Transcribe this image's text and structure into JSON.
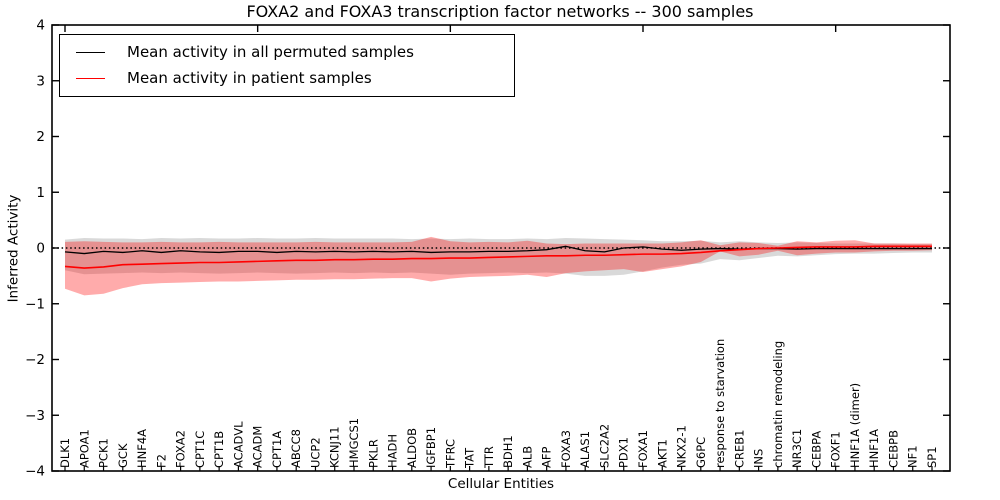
{
  "chart_data": {
    "type": "line",
    "title": "FOXA2 and FOXA3 transcription factor networks -- 300 samples",
    "xlabel": "Cellular Entities",
    "ylabel": "Inferred Activity",
    "ylim": [
      -4,
      4
    ],
    "yticks": [
      -4,
      -3,
      -2,
      -1,
      0,
      1,
      2,
      3,
      4
    ],
    "grid": false,
    "legend_position": "upper left",
    "zero_line": {
      "style": "dotted",
      "color": "#000000",
      "y": 0
    },
    "categories": [
      "DLK1",
      "APOA1",
      "PCK1",
      "GCK",
      "HNF4A",
      "F2",
      "FOXA2",
      "CPT1C",
      "CPT1B",
      "ACADVL",
      "ACADM",
      "CPT1A",
      "ABCC8",
      "UCP2",
      "KCNJ11",
      "HMGCS1",
      "PKLR",
      "HADH",
      "ALDOB",
      "IGFBP1",
      "TFRC",
      "TAT",
      "TTR",
      "BDH1",
      "ALB",
      "AFP",
      "FOXA3",
      "ALAS1",
      "SLC2A2",
      "PDX1",
      "FOXA1",
      "AKT1",
      "NKX2-1",
      "G6PC",
      "response to starvation",
      "CREB1",
      "INS",
      "chromatin remodeling",
      "NR3C1",
      "CEBPA",
      "FOXF1",
      "HNF1A (dimer)",
      "HNF1A",
      "CEBPB",
      "NF1",
      "SP1"
    ],
    "series": [
      {
        "name": "Mean activity in all permuted samples",
        "color": "#000000",
        "values": [
          -0.07,
          -0.1,
          -0.06,
          -0.08,
          -0.05,
          -0.08,
          -0.05,
          -0.07,
          -0.08,
          -0.06,
          -0.06,
          -0.08,
          -0.06,
          -0.07,
          -0.06,
          -0.07,
          -0.06,
          -0.07,
          -0.06,
          -0.08,
          -0.07,
          -0.07,
          -0.06,
          -0.06,
          -0.05,
          -0.03,
          0.03,
          -0.05,
          -0.07,
          0.0,
          0.02,
          -0.02,
          -0.04,
          -0.02,
          -0.01,
          -0.02,
          -0.01,
          -0.01,
          -0.02,
          -0.01,
          -0.01,
          -0.01,
          -0.01,
          -0.01,
          -0.01,
          -0.01
        ]
      },
      {
        "name": "Mean activity in patient samples",
        "color": "#ff0000",
        "values": [
          -0.33,
          -0.36,
          -0.34,
          -0.3,
          -0.29,
          -0.28,
          -0.27,
          -0.26,
          -0.26,
          -0.25,
          -0.24,
          -0.23,
          -0.22,
          -0.22,
          -0.21,
          -0.21,
          -0.2,
          -0.2,
          -0.19,
          -0.19,
          -0.18,
          -0.18,
          -0.17,
          -0.16,
          -0.15,
          -0.14,
          -0.14,
          -0.13,
          -0.13,
          -0.12,
          -0.11,
          -0.11,
          -0.1,
          -0.08,
          -0.05,
          -0.03,
          -0.01,
          0.0,
          0.01,
          0.02,
          0.02,
          0.02,
          0.03,
          0.03,
          0.03,
          0.03
        ]
      }
    ],
    "bands": [
      {
        "name": "permuted-std-band",
        "color": "#808080",
        "opacity": 0.3,
        "upper": [
          0.15,
          0.18,
          0.17,
          0.17,
          0.16,
          0.18,
          0.17,
          0.18,
          0.17,
          0.17,
          0.18,
          0.17,
          0.17,
          0.18,
          0.17,
          0.17,
          0.17,
          0.17,
          0.16,
          0.17,
          0.16,
          0.17,
          0.16,
          0.16,
          0.17,
          0.16,
          0.18,
          0.17,
          0.16,
          0.15,
          0.14,
          0.12,
          0.12,
          0.13,
          0.1,
          0.12,
          0.1,
          0.09,
          0.1,
          0.09,
          0.08,
          0.08,
          0.08,
          0.08,
          0.07,
          0.07
        ],
        "lower": [
          -0.4,
          -0.47,
          -0.46,
          -0.45,
          -0.44,
          -0.45,
          -0.44,
          -0.45,
          -0.46,
          -0.45,
          -0.44,
          -0.45,
          -0.46,
          -0.45,
          -0.44,
          -0.45,
          -0.44,
          -0.45,
          -0.44,
          -0.46,
          -0.48,
          -0.46,
          -0.45,
          -0.44,
          -0.45,
          -0.44,
          -0.46,
          -0.5,
          -0.5,
          -0.48,
          -0.42,
          -0.35,
          -0.3,
          -0.28,
          -0.2,
          -0.22,
          -0.18,
          -0.14,
          -0.15,
          -0.13,
          -0.11,
          -0.1,
          -0.1,
          -0.09,
          -0.08,
          -0.08
        ]
      },
      {
        "name": "patient-std-band",
        "color": "#ff0000",
        "opacity": 0.33,
        "upper": [
          0.11,
          0.12,
          0.11,
          0.1,
          0.1,
          0.11,
          0.1,
          0.1,
          0.11,
          0.1,
          0.1,
          0.1,
          0.1,
          0.11,
          0.1,
          0.1,
          0.1,
          0.1,
          0.11,
          0.2,
          0.12,
          0.1,
          0.11,
          0.1,
          0.13,
          0.08,
          0.07,
          0.08,
          0.08,
          0.08,
          0.08,
          0.08,
          0.1,
          0.14,
          0.05,
          0.1,
          0.09,
          0.04,
          0.12,
          0.1,
          0.13,
          0.14,
          0.08,
          0.08,
          0.08,
          0.08
        ],
        "lower": [
          -0.73,
          -0.85,
          -0.82,
          -0.72,
          -0.65,
          -0.63,
          -0.62,
          -0.61,
          -0.6,
          -0.6,
          -0.59,
          -0.58,
          -0.57,
          -0.57,
          -0.56,
          -0.56,
          -0.55,
          -0.54,
          -0.54,
          -0.6,
          -0.55,
          -0.52,
          -0.51,
          -0.5,
          -0.48,
          -0.52,
          -0.45,
          -0.42,
          -0.4,
          -0.38,
          -0.43,
          -0.38,
          -0.33,
          -0.25,
          -0.06,
          -0.15,
          -0.12,
          -0.05,
          -0.13,
          -0.1,
          -0.08,
          -0.08,
          -0.06,
          -0.05,
          -0.05,
          -0.04
        ]
      }
    ]
  }
}
